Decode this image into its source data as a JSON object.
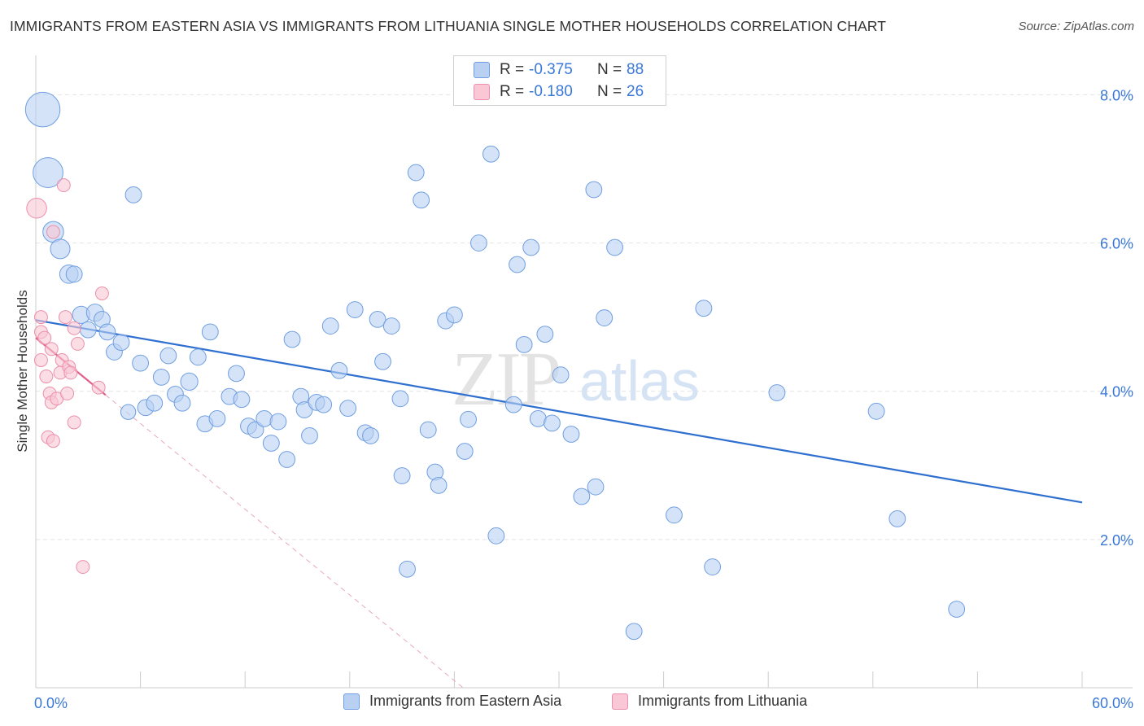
{
  "header": {
    "title": "IMMIGRANTS FROM EASTERN ASIA VS IMMIGRANTS FROM LITHUANIA SINGLE MOTHER HOUSEHOLDS CORRELATION CHART",
    "source": "Source: ZipAtlas.com"
  },
  "watermark": {
    "zip": "ZIP",
    "atlas": "atlas"
  },
  "legend": {
    "series1": {
      "r_label": "R =",
      "r_value": "-0.375",
      "n_label": "N =",
      "n_value": "88"
    },
    "series2": {
      "r_label": "R =",
      "r_value": "-0.180",
      "n_label": "N =",
      "n_value": "26"
    }
  },
  "colors": {
    "blue_fill": "#b8d1f3",
    "blue_stroke": "#6f9ee0",
    "blue_line": "#2e6fd0",
    "pink_fill": "#f9c7d6",
    "pink_stroke": "#ec8faa",
    "pink_line": "#e0608a",
    "grid": "#e4e4e4",
    "axis_text": "#3a78d8"
  },
  "chart_data": {
    "type": "scatter",
    "title": "IMMIGRANTS FROM EASTERN ASIA VS IMMIGRANTS FROM LITHUANIA SINGLE MOTHER HOUSEHOLDS CORRELATION CHART",
    "xlabel": "",
    "ylabel": "Single Mother Households",
    "xlim": [
      0,
      60
    ],
    "ylim": [
      0,
      8.4
    ],
    "x_tick_labels": [
      "0.0%",
      "60.0%"
    ],
    "y_ticks": [
      2,
      4,
      6,
      8
    ],
    "y_tick_labels": [
      "2.0%",
      "4.0%",
      "6.0%",
      "8.0%"
    ],
    "grid": "horizontal dashed",
    "legend_position": "top-center",
    "series": [
      {
        "name": "Immigrants from Eastern Asia",
        "color": "#6f9ee0",
        "r": -0.375,
        "n": 88,
        "trend": {
          "x": [
            0,
            60
          ],
          "y": [
            4.96,
            2.5
          ]
        },
        "points": [
          {
            "x": 0.4,
            "y": 7.8,
            "s": 3
          },
          {
            "x": 0.7,
            "y": 6.95,
            "s": 2.6
          },
          {
            "x": 1.0,
            "y": 6.15,
            "s": 1.8
          },
          {
            "x": 1.4,
            "y": 5.92,
            "s": 1.7
          },
          {
            "x": 1.9,
            "y": 5.58,
            "s": 1.6
          },
          {
            "x": 2.2,
            "y": 5.58,
            "s": 1.4
          },
          {
            "x": 2.6,
            "y": 5.03,
            "s": 1.5
          },
          {
            "x": 3.4,
            "y": 5.06,
            "s": 1.5
          },
          {
            "x": 3.8,
            "y": 4.97,
            "s": 1.4
          },
          {
            "x": 3.0,
            "y": 4.83,
            "s": 1.4
          },
          {
            "x": 4.1,
            "y": 4.8,
            "s": 1.4
          },
          {
            "x": 4.5,
            "y": 4.53,
            "s": 1.4
          },
          {
            "x": 4.9,
            "y": 4.66,
            "s": 1.4
          },
          {
            "x": 5.3,
            "y": 3.72,
            "s": 1.3
          },
          {
            "x": 5.6,
            "y": 6.65,
            "s": 1.4
          },
          {
            "x": 6.0,
            "y": 4.38,
            "s": 1.4
          },
          {
            "x": 6.3,
            "y": 3.78,
            "s": 1.4
          },
          {
            "x": 6.8,
            "y": 3.84,
            "s": 1.4
          },
          {
            "x": 7.2,
            "y": 4.19,
            "s": 1.4
          },
          {
            "x": 7.6,
            "y": 4.48,
            "s": 1.4
          },
          {
            "x": 8.0,
            "y": 3.96,
            "s": 1.4
          },
          {
            "x": 8.4,
            "y": 3.84,
            "s": 1.4
          },
          {
            "x": 8.8,
            "y": 4.13,
            "s": 1.5
          },
          {
            "x": 9.3,
            "y": 4.46,
            "s": 1.4
          },
          {
            "x": 9.7,
            "y": 3.56,
            "s": 1.4
          },
          {
            "x": 10.0,
            "y": 4.8,
            "s": 1.4
          },
          {
            "x": 10.4,
            "y": 3.63,
            "s": 1.4
          },
          {
            "x": 11.1,
            "y": 3.93,
            "s": 1.4
          },
          {
            "x": 11.5,
            "y": 4.24,
            "s": 1.4
          },
          {
            "x": 11.8,
            "y": 3.89,
            "s": 1.4
          },
          {
            "x": 12.2,
            "y": 3.53,
            "s": 1.4
          },
          {
            "x": 12.6,
            "y": 3.48,
            "s": 1.4
          },
          {
            "x": 13.1,
            "y": 3.63,
            "s": 1.4
          },
          {
            "x": 13.5,
            "y": 3.3,
            "s": 1.4
          },
          {
            "x": 13.9,
            "y": 3.59,
            "s": 1.4
          },
          {
            "x": 14.4,
            "y": 3.08,
            "s": 1.4
          },
          {
            "x": 14.7,
            "y": 4.7,
            "s": 1.4
          },
          {
            "x": 15.2,
            "y": 3.93,
            "s": 1.4
          },
          {
            "x": 15.4,
            "y": 3.75,
            "s": 1.4
          },
          {
            "x": 15.7,
            "y": 3.4,
            "s": 1.4
          },
          {
            "x": 16.1,
            "y": 3.85,
            "s": 1.4
          },
          {
            "x": 16.5,
            "y": 3.82,
            "s": 1.4
          },
          {
            "x": 16.9,
            "y": 4.88,
            "s": 1.4
          },
          {
            "x": 17.4,
            "y": 4.28,
            "s": 1.4
          },
          {
            "x": 17.9,
            "y": 3.77,
            "s": 1.4
          },
          {
            "x": 18.3,
            "y": 5.1,
            "s": 1.4
          },
          {
            "x": 18.9,
            "y": 3.44,
            "s": 1.4
          },
          {
            "x": 19.2,
            "y": 3.4,
            "s": 1.4
          },
          {
            "x": 19.6,
            "y": 4.97,
            "s": 1.4
          },
          {
            "x": 19.9,
            "y": 4.4,
            "s": 1.4
          },
          {
            "x": 20.4,
            "y": 4.88,
            "s": 1.4
          },
          {
            "x": 20.9,
            "y": 3.9,
            "s": 1.4
          },
          {
            "x": 21.0,
            "y": 2.86,
            "s": 1.4
          },
          {
            "x": 21.8,
            "y": 6.95,
            "s": 1.4
          },
          {
            "x": 22.1,
            "y": 6.58,
            "s": 1.4
          },
          {
            "x": 22.5,
            "y": 3.48,
            "s": 1.4
          },
          {
            "x": 22.9,
            "y": 2.91,
            "s": 1.4
          },
          {
            "x": 23.1,
            "y": 2.73,
            "s": 1.4
          },
          {
            "x": 23.5,
            "y": 4.95,
            "s": 1.4
          },
          {
            "x": 24.0,
            "y": 5.03,
            "s": 1.4
          },
          {
            "x": 24.6,
            "y": 3.19,
            "s": 1.4
          },
          {
            "x": 24.8,
            "y": 3.62,
            "s": 1.4
          },
          {
            "x": 21.3,
            "y": 1.6,
            "s": 1.4
          },
          {
            "x": 25.4,
            "y": 6.0,
            "s": 1.4
          },
          {
            "x": 26.1,
            "y": 7.2,
            "s": 1.4
          },
          {
            "x": 26.4,
            "y": 2.05,
            "s": 1.4
          },
          {
            "x": 27.4,
            "y": 3.82,
            "s": 1.4
          },
          {
            "x": 27.6,
            "y": 5.71,
            "s": 1.4
          },
          {
            "x": 28.0,
            "y": 4.63,
            "s": 1.4
          },
          {
            "x": 28.4,
            "y": 5.94,
            "s": 1.4
          },
          {
            "x": 28.8,
            "y": 3.63,
            "s": 1.4
          },
          {
            "x": 29.2,
            "y": 4.77,
            "s": 1.4
          },
          {
            "x": 29.6,
            "y": 3.57,
            "s": 1.4
          },
          {
            "x": 30.1,
            "y": 4.22,
            "s": 1.4
          },
          {
            "x": 30.7,
            "y": 3.42,
            "s": 1.4
          },
          {
            "x": 31.3,
            "y": 2.58,
            "s": 1.4
          },
          {
            "x": 32.1,
            "y": 2.71,
            "s": 1.4
          },
          {
            "x": 32.0,
            "y": 6.72,
            "s": 1.4
          },
          {
            "x": 32.6,
            "y": 4.99,
            "s": 1.4
          },
          {
            "x": 33.2,
            "y": 5.94,
            "s": 1.4
          },
          {
            "x": 34.3,
            "y": 0.76,
            "s": 1.4
          },
          {
            "x": 36.6,
            "y": 2.33,
            "s": 1.4
          },
          {
            "x": 38.3,
            "y": 5.12,
            "s": 1.4
          },
          {
            "x": 38.8,
            "y": 1.63,
            "s": 1.4
          },
          {
            "x": 42.5,
            "y": 3.98,
            "s": 1.4
          },
          {
            "x": 48.2,
            "y": 3.73,
            "s": 1.4
          },
          {
            "x": 49.4,
            "y": 2.28,
            "s": 1.4
          },
          {
            "x": 52.8,
            "y": 1.06,
            "s": 1.4
          }
        ]
      },
      {
        "name": "Immigrants from Lithuania",
        "color": "#ec8faa",
        "r": -0.18,
        "n": 26,
        "trend": {
          "x": [
            0,
            4.0
          ],
          "y": [
            4.72,
            3.95
          ]
        },
        "trend_extended": {
          "x": [
            4.0,
            24.5
          ],
          "y": [
            3.95,
            0.0
          ]
        },
        "points": [
          {
            "x": 0.05,
            "y": 6.47,
            "s": 2.0
          },
          {
            "x": 0.3,
            "y": 5.0,
            "s": 1.3
          },
          {
            "x": 0.3,
            "y": 4.8,
            "s": 1.3
          },
          {
            "x": 0.5,
            "y": 4.72,
            "s": 1.3
          },
          {
            "x": 0.3,
            "y": 4.42,
            "s": 1.3
          },
          {
            "x": 0.6,
            "y": 4.2,
            "s": 1.3
          },
          {
            "x": 0.7,
            "y": 3.38,
            "s": 1.3
          },
          {
            "x": 0.8,
            "y": 3.97,
            "s": 1.3
          },
          {
            "x": 0.9,
            "y": 3.85,
            "s": 1.3
          },
          {
            "x": 0.9,
            "y": 4.57,
            "s": 1.3
          },
          {
            "x": 1.0,
            "y": 3.33,
            "s": 1.3
          },
          {
            "x": 1.0,
            "y": 6.15,
            "s": 1.3
          },
          {
            "x": 1.2,
            "y": 3.9,
            "s": 1.3
          },
          {
            "x": 1.4,
            "y": 4.25,
            "s": 1.3
          },
          {
            "x": 1.5,
            "y": 4.42,
            "s": 1.3
          },
          {
            "x": 1.6,
            "y": 6.78,
            "s": 1.3
          },
          {
            "x": 1.7,
            "y": 5.0,
            "s": 1.3
          },
          {
            "x": 1.8,
            "y": 3.97,
            "s": 1.3
          },
          {
            "x": 1.9,
            "y": 4.33,
            "s": 1.3
          },
          {
            "x": 2.0,
            "y": 4.25,
            "s": 1.3
          },
          {
            "x": 2.2,
            "y": 3.58,
            "s": 1.3
          },
          {
            "x": 2.2,
            "y": 4.85,
            "s": 1.3
          },
          {
            "x": 2.4,
            "y": 4.64,
            "s": 1.3
          },
          {
            "x": 2.7,
            "y": 1.63,
            "s": 1.3
          },
          {
            "x": 3.6,
            "y": 4.05,
            "s": 1.3
          },
          {
            "x": 3.8,
            "y": 5.32,
            "s": 1.3
          }
        ]
      }
    ]
  },
  "bottom_legend": {
    "series1_label": "Immigrants from Eastern Asia",
    "series2_label": "Immigrants from Lithuania"
  }
}
